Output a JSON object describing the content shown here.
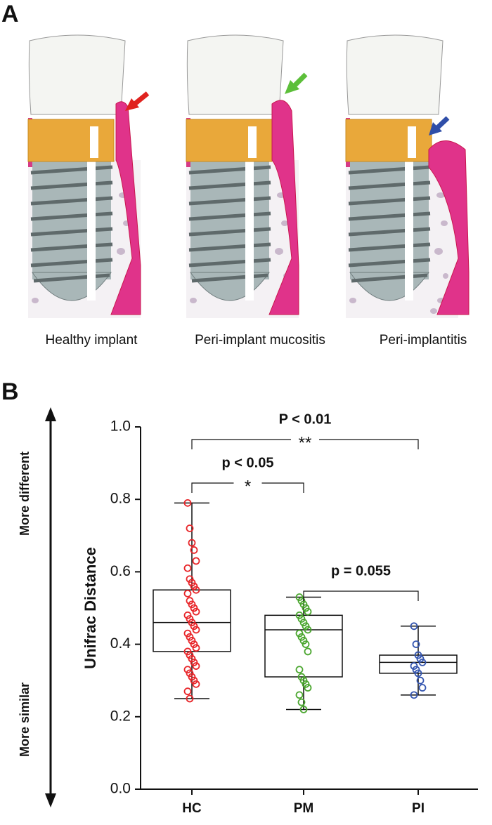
{
  "panel_a": {
    "label": "A",
    "captions": [
      "Healthy implant",
      "Peri-implant mucositis",
      "Peri-implantitis"
    ]
  },
  "chart_data": {
    "type": "box",
    "panel_label": "B",
    "ylabel": "Unifrac Distance",
    "y_top_note": "More different",
    "y_bottom_note": "More similar",
    "categories": [
      "HC",
      "PM",
      "PI"
    ],
    "ylim": [
      0,
      1
    ],
    "yticks": [
      {
        "value": 0,
        "label": "0.0"
      },
      0.2,
      0.4,
      0.6,
      0.8,
      {
        "value": 1,
        "label": "1.0"
      }
    ],
    "series": [
      {
        "name": "HC",
        "color": "#e8262a",
        "min": 0.25,
        "q1": 0.38,
        "median": 0.46,
        "q3": 0.55,
        "max": 0.79,
        "points": [
          0.79,
          0.72,
          0.68,
          0.66,
          0.63,
          0.61,
          0.58,
          0.57,
          0.56,
          0.55,
          0.54,
          0.52,
          0.51,
          0.5,
          0.49,
          0.48,
          0.47,
          0.46,
          0.45,
          0.44,
          0.43,
          0.42,
          0.41,
          0.4,
          0.39,
          0.38,
          0.37,
          0.36,
          0.35,
          0.34,
          0.33,
          0.32,
          0.31,
          0.3,
          0.29,
          0.27,
          0.25
        ]
      },
      {
        "name": "PM",
        "color": "#4aa62e",
        "min": 0.22,
        "q1": 0.31,
        "median": 0.44,
        "q3": 0.48,
        "max": 0.53,
        "points": [
          0.53,
          0.52,
          0.51,
          0.5,
          0.49,
          0.48,
          0.47,
          0.46,
          0.45,
          0.44,
          0.43,
          0.42,
          0.41,
          0.4,
          0.38,
          0.33,
          0.31,
          0.3,
          0.29,
          0.28,
          0.26,
          0.24,
          0.22
        ]
      },
      {
        "name": "PI",
        "color": "#3556b0",
        "min": 0.26,
        "q1": 0.32,
        "median": 0.35,
        "q3": 0.37,
        "max": 0.45,
        "points": [
          0.45,
          0.4,
          0.37,
          0.36,
          0.35,
          0.34,
          0.33,
          0.32,
          0.3,
          0.28,
          0.26
        ]
      }
    ],
    "annotations": [
      {
        "from": 0,
        "to": 2,
        "stat": "P < 0.01",
        "stars": "**"
      },
      {
        "from": 0,
        "to": 1,
        "stat": "p < 0.05",
        "stars": "*"
      },
      {
        "from": 1,
        "to": 2,
        "stat": "p = 0.055",
        "stars": null
      }
    ]
  }
}
